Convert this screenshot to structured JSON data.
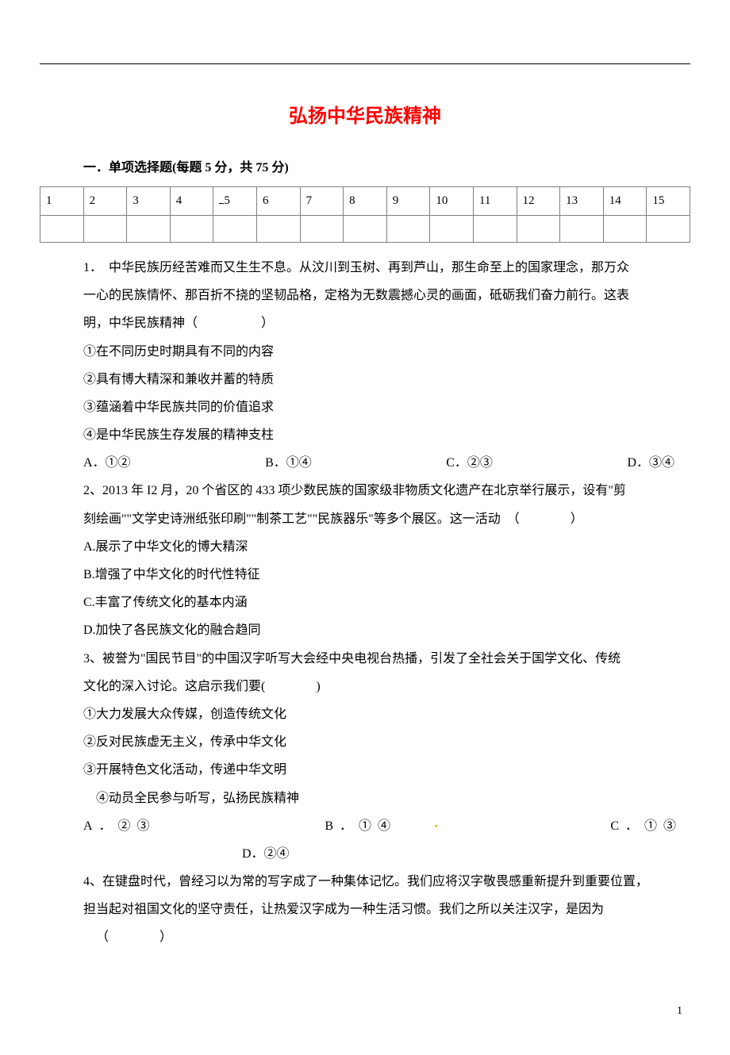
{
  "title": "弘扬中华民族精神",
  "section_heading": "一．单项选择题(每题 5 分，共 75 分)",
  "grid_headers": [
    "1",
    "2",
    "3",
    "4",
    "5",
    "6",
    "7",
    "8",
    "9",
    "10",
    "11",
    "12",
    "13",
    "14",
    "15"
  ],
  "q1": {
    "num": "1．",
    "stem_a": "中华民族历经苦难而又生生不息。从汶川到玉树、再到芦山，那生命至上的国家理念，那万众",
    "stem_b": "一心的民族情怀、那百折不挠的坚韧品格，定格为无数震撼心灵的画面，砥砺我们奋力前行。这表",
    "stem_c": "明，中华民族精神（　　　　　）",
    "i1": "①在不同历史时期具有不同的内容",
    "i2": "②具有博大精深和兼收并蓄的特质",
    "i3": "③蕴涵着中华民族共同的价值追求",
    "i4": "④是中华民族生存发展的精神支柱",
    "oA": "A．①②",
    "oB": "B．①④",
    "oC": "C．②③",
    "oD": "D．③④"
  },
  "q2": {
    "stem_a": "2、2013 年 I2 月，20 个省区的 433 项少数民族的国家级非物质文化遗产在北京举行展示，设有\"剪",
    "stem_b": "刻绘画\"\"文学史诗洲纸张印刷\"\"制茶工艺\"\"民族器乐\"等多个展区。这一活动　（　　　　）",
    "oA": "A.展示了中华文化的博大精深",
    "oB": "B.增强了中华文化的时代性特征",
    "oC": "C.丰富了传统文化的基本内涵",
    "oD": "D.加快了各民族文化的融合趋同"
  },
  "q3": {
    "stem_a": "3、被誉为\"国民节目\"的中国汉字听写大会经中央电视台热播，引发了全社会关于国学文化、传统",
    "stem_b": "文化的深入讨论。这启示我们要(　　　　)",
    "i1": "①大力发展大众传媒，创造传统文化",
    "i2": "②反对民族虚无主义，传承中华文化",
    "i3": "③开展特色文化活动，传递中华文明",
    "i4": "④动员全民参与听写，弘扬民族精神",
    "oA": "A．②③",
    "oB": "B．①④",
    "oC": "C．①③",
    "oD": "D．②④"
  },
  "q4": {
    "stem_a": "4、在键盘时代，曾经习以为常的写字成了一种集体记忆。我们应将汉字敬畏感重新提升到重要位置，",
    "stem_b": "担当起对祖国文化的坚守责任，让热爱汉字成为一种生活习惯。我们之所以关注汉字，是因为",
    "stem_c": "（　　　　）"
  },
  "page_number": "1"
}
